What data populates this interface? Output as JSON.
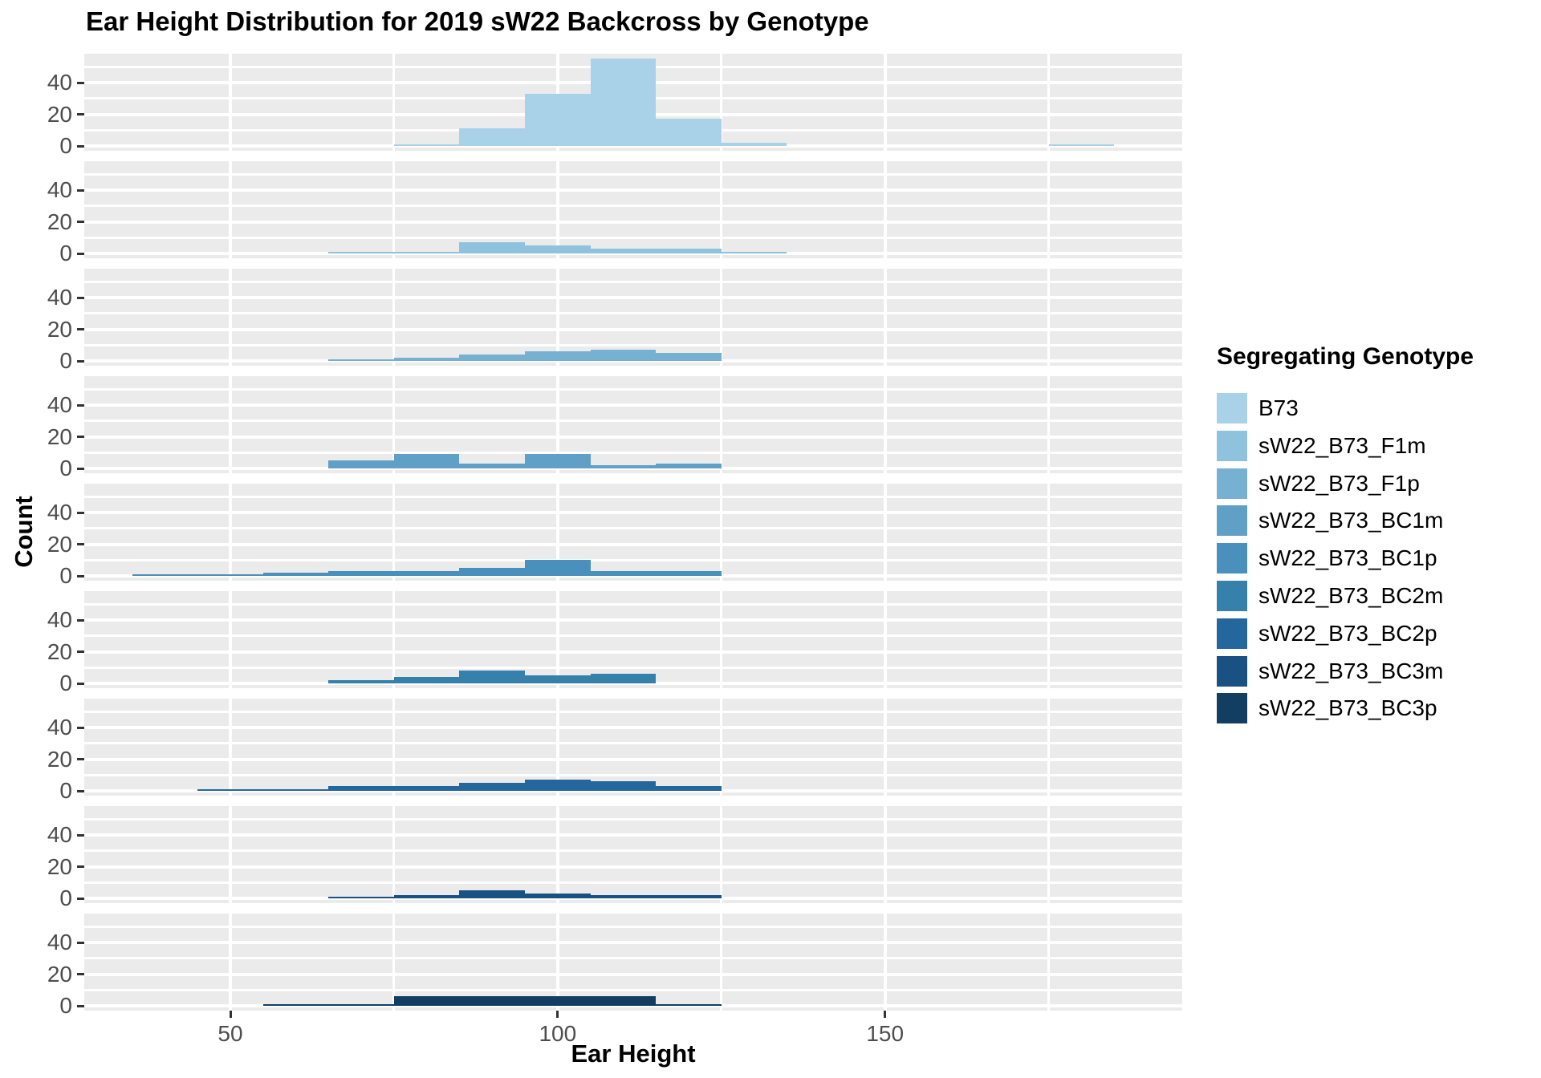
{
  "title": "Ear Height Distribution for 2019 sW22 Backcross by Genotype",
  "chart_data": {
    "type": "bar",
    "subtype": "faceted_histogram",
    "title": "Ear Height Distribution for 2019 sW22 Backcross by Genotype",
    "xlabel": "Ear Height",
    "ylabel": "Count",
    "legend_title": "Segregating Genotype",
    "legend_position": "right",
    "grid": true,
    "panel_bg": "#EBEBEB",
    "grid_color": "#FFFFFF",
    "tick_label_color": "#4D4D4D",
    "binwidth": 10,
    "x_axis": {
      "ticks": [
        50,
        100,
        150
      ],
      "minor_ticks": [
        75,
        125,
        175
      ],
      "range": [
        27.5,
        195.5
      ]
    },
    "y_axis": {
      "ticks": [
        0,
        20,
        40
      ],
      "minor_ticks": [
        10,
        30,
        50
      ],
      "range": [
        -3,
        58
      ]
    },
    "facets": [
      {
        "genotype": "B73",
        "color": "#A9D1E8",
        "bins": [
          {
            "start": 75,
            "count": 1
          },
          {
            "start": 85,
            "count": 11
          },
          {
            "start": 95,
            "count": 33
          },
          {
            "start": 105,
            "count": 55
          },
          {
            "start": 115,
            "count": 17
          },
          {
            "start": 125,
            "count": 2
          },
          {
            "start": 175,
            "count": 1
          }
        ]
      },
      {
        "genotype": "sW22_B73_F1m",
        "color": "#8FC2DD",
        "bins": [
          {
            "start": 65,
            "count": 1
          },
          {
            "start": 75,
            "count": 1
          },
          {
            "start": 85,
            "count": 7
          },
          {
            "start": 95,
            "count": 5
          },
          {
            "start": 105,
            "count": 3
          },
          {
            "start": 115,
            "count": 3
          },
          {
            "start": 125,
            "count": 1
          }
        ]
      },
      {
        "genotype": "sW22_B73_F1p",
        "color": "#76B1D2",
        "bins": [
          {
            "start": 65,
            "count": 1
          },
          {
            "start": 75,
            "count": 2
          },
          {
            "start": 85,
            "count": 4
          },
          {
            "start": 95,
            "count": 6
          },
          {
            "start": 105,
            "count": 7
          },
          {
            "start": 115,
            "count": 5
          }
        ]
      },
      {
        "genotype": "sW22_B73_BC1m",
        "color": "#609FC6",
        "bins": [
          {
            "start": 65,
            "count": 5
          },
          {
            "start": 75,
            "count": 9
          },
          {
            "start": 85,
            "count": 3
          },
          {
            "start": 95,
            "count": 9
          },
          {
            "start": 105,
            "count": 2
          },
          {
            "start": 115,
            "count": 3
          }
        ]
      },
      {
        "genotype": "sW22_B73_BC1p",
        "color": "#4A90BC",
        "bins": [
          {
            "start": 35,
            "count": 1
          },
          {
            "start": 45,
            "count": 1
          },
          {
            "start": 55,
            "count": 2
          },
          {
            "start": 65,
            "count": 3
          },
          {
            "start": 75,
            "count": 3
          },
          {
            "start": 85,
            "count": 5
          },
          {
            "start": 95,
            "count": 10
          },
          {
            "start": 105,
            "count": 3
          },
          {
            "start": 115,
            "count": 3
          }
        ]
      },
      {
        "genotype": "sW22_B73_BC2m",
        "color": "#3680AC",
        "bins": [
          {
            "start": 65,
            "count": 2
          },
          {
            "start": 75,
            "count": 4
          },
          {
            "start": 85,
            "count": 8
          },
          {
            "start": 95,
            "count": 5
          },
          {
            "start": 105,
            "count": 6
          }
        ]
      },
      {
        "genotype": "sW22_B73_BC2p",
        "color": "#24679D",
        "bins": [
          {
            "start": 45,
            "count": 1
          },
          {
            "start": 55,
            "count": 1
          },
          {
            "start": 65,
            "count": 3
          },
          {
            "start": 75,
            "count": 3
          },
          {
            "start": 85,
            "count": 5
          },
          {
            "start": 95,
            "count": 7
          },
          {
            "start": 105,
            "count": 6
          },
          {
            "start": 115,
            "count": 3
          }
        ]
      },
      {
        "genotype": "sW22_B73_BC3m",
        "color": "#1A5183",
        "bins": [
          {
            "start": 65,
            "count": 1
          },
          {
            "start": 75,
            "count": 2
          },
          {
            "start": 85,
            "count": 5
          },
          {
            "start": 95,
            "count": 3
          },
          {
            "start": 105,
            "count": 2
          },
          {
            "start": 115,
            "count": 2
          }
        ]
      },
      {
        "genotype": "sW22_B73_BC3p",
        "color": "#123E62",
        "bins": [
          {
            "start": 55,
            "count": 1
          },
          {
            "start": 65,
            "count": 1
          },
          {
            "start": 75,
            "count": 6
          },
          {
            "start": 85,
            "count": 6
          },
          {
            "start": 95,
            "count": 6
          },
          {
            "start": 105,
            "count": 6
          },
          {
            "start": 115,
            "count": 1
          }
        ]
      }
    ]
  }
}
